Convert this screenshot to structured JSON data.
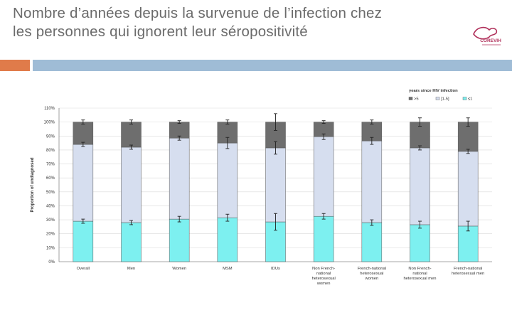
{
  "slide": {
    "title_line1": "Nombre d’années depuis la survenue de l’infection chez",
    "title_line2": "les personnes qui ignorent leur séropositivité",
    "logo_text": "COREVIH"
  },
  "chart_data": {
    "type": "bar",
    "stacked": true,
    "ylabel": "Proportion of undiagnosed",
    "ylim": [
      0,
      110
    ],
    "yticks": [
      0,
      10,
      20,
      30,
      40,
      50,
      60,
      70,
      80,
      90,
      100,
      110
    ],
    "yticklabels": [
      "0%",
      "10%",
      "20%",
      "30%",
      "40%",
      "50%",
      "60%",
      "70%",
      "80%",
      "90%",
      "100%",
      "110%"
    ],
    "legend_title": "years since HIV infection",
    "legend_position": "top-right",
    "categories": [
      [
        "Overall"
      ],
      [
        "Men"
      ],
      [
        "Women"
      ],
      [
        "MSM"
      ],
      [
        "IDUs"
      ],
      [
        "Non French-",
        "national",
        "heterosexual",
        "women"
      ],
      [
        "French-national",
        "heterosexual",
        "women"
      ],
      [
        "Non French-",
        "national",
        "heterosexual men"
      ],
      [
        "French-national",
        "heterosexual men"
      ]
    ],
    "series": [
      {
        "name": "≤1",
        "color": "#7df0f0",
        "values": [
          29,
          28,
          30.5,
          31.5,
          28.5,
          32.5,
          28,
          26.5,
          25.5
        ],
        "err": [
          1.5,
          1.5,
          2,
          2.5,
          6,
          2,
          2,
          2.5,
          3.5
        ]
      },
      {
        "name": "]1-5]",
        "color": "#d6deef",
        "values": [
          55,
          54,
          58,
          53.5,
          53,
          57,
          58.5,
          55,
          53.5
        ],
        "err": [
          1.5,
          1.5,
          1.5,
          4,
          4.5,
          2,
          2.5,
          1.5,
          1.5
        ]
      },
      {
        "name": ">5",
        "color": "#6e6e6e",
        "values": [
          16,
          18,
          11.5,
          15,
          18.5,
          10.5,
          13.5,
          18.5,
          21
        ],
        "err": [
          1.5,
          1.5,
          1,
          1.5,
          6,
          1,
          1.5,
          3,
          3
        ]
      }
    ]
  }
}
